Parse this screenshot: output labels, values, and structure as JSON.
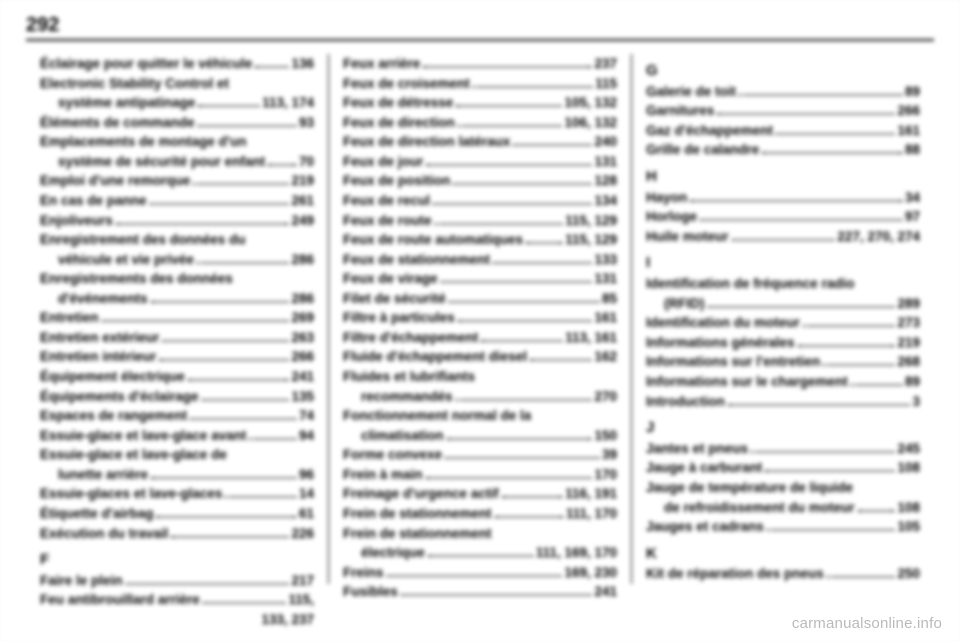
{
  "page_number": "292",
  "watermark": "carmanualsonline.info",
  "columns": [
    {
      "entries": [
        {
          "label": "Éclairage pour quitter le véhicule",
          "page": "136"
        },
        {
          "label": "Electronic Stability Control et",
          "page": ""
        },
        {
          "label": "système antipatinage",
          "page": "113, 174",
          "indent": true
        },
        {
          "label": "Éléments de commande",
          "page": "93"
        },
        {
          "label": "Emplacements de montage d'un",
          "page": ""
        },
        {
          "label": "système de sécurité pour enfant",
          "page": "70",
          "indent": true
        },
        {
          "label": "Emploi d'une remorque",
          "page": "219"
        },
        {
          "label": "En cas de panne",
          "page": "261"
        },
        {
          "label": "Enjoliveurs",
          "page": "249"
        },
        {
          "label": "Enregistrement des données du",
          "page": ""
        },
        {
          "label": "véhicule et vie privée",
          "page": "286",
          "indent": true
        },
        {
          "label": "Enregistrements des données",
          "page": ""
        },
        {
          "label": "d'événements",
          "page": "286",
          "indent": true
        },
        {
          "label": "Entretien",
          "page": "269"
        },
        {
          "label": "Entretien extérieur",
          "page": "263"
        },
        {
          "label": "Entretien intérieur",
          "page": "266"
        },
        {
          "label": "Équipement électrique",
          "page": "241"
        },
        {
          "label": "Équipements d'éclairage",
          "page": "135"
        },
        {
          "label": "Espaces de rangement",
          "page": "74"
        },
        {
          "label": "Essuie-glace et lave-glace avant",
          "page": "94"
        },
        {
          "label": "Essuie-glace et lave-glace de",
          "page": ""
        },
        {
          "label": "lunette arrière",
          "page": "96",
          "indent": true
        },
        {
          "label": "Essuie-glaces et lave-glaces",
          "page": "14"
        },
        {
          "label": "Étiquette d'airbag",
          "page": "61"
        },
        {
          "label": "Exécution du travail",
          "page": "226"
        },
        {
          "letter": "F"
        },
        {
          "label": "Faire le plein",
          "page": "217"
        },
        {
          "label": "Feu antibrouillard arrière",
          "page": "115,"
        },
        {
          "label": "",
          "page": "133, 237",
          "indent": true,
          "nodots": true
        }
      ]
    },
    {
      "entries": [
        {
          "label": "Feux arrière",
          "page": "237"
        },
        {
          "label": "Feux de croisement",
          "page": "115"
        },
        {
          "label": "Feux de détresse",
          "page": "105, 132"
        },
        {
          "label": "Feux de direction",
          "page": "106, 132"
        },
        {
          "label": "Feux de direction latéraux",
          "page": "240"
        },
        {
          "label": "Feux de jour",
          "page": "131"
        },
        {
          "label": "Feux de position",
          "page": "128"
        },
        {
          "label": "Feux de recul",
          "page": "134"
        },
        {
          "label": "Feux de route",
          "page": "115, 129"
        },
        {
          "label": "Feux de route automatiques",
          "page": "115, 129"
        },
        {
          "label": "Feux de stationnement",
          "page": "133"
        },
        {
          "label": "Feux de virage",
          "page": "131"
        },
        {
          "label": "Filet de sécurité",
          "page": "85"
        },
        {
          "label": "Filtre à particules",
          "page": "161"
        },
        {
          "label": "Filtre d'échappement",
          "page": "113, 161"
        },
        {
          "label": "Fluide d'échappement diesel",
          "page": "162"
        },
        {
          "label": "Fluides et lubrifiants",
          "page": ""
        },
        {
          "label": "recommandés",
          "page": "270",
          "indent": true
        },
        {
          "label": "Fonctionnement normal de la",
          "page": ""
        },
        {
          "label": "climatisation",
          "page": "150",
          "indent": true
        },
        {
          "label": "Forme convexe",
          "page": "39"
        },
        {
          "label": "Frein à main",
          "page": "170"
        },
        {
          "label": "Freinage d'urgence actif",
          "page": "116, 191"
        },
        {
          "label": "Frein de stationnement",
          "page": "111, 170"
        },
        {
          "label": "Frein de stationnement",
          "page": ""
        },
        {
          "label": "électrique",
          "page": "111, 169, 170",
          "indent": true
        },
        {
          "label": "Freins",
          "page": "169, 230"
        },
        {
          "label": "Fusibles",
          "page": "241"
        }
      ]
    },
    {
      "entries": [
        {
          "letter": "G"
        },
        {
          "label": "Galerie de toit",
          "page": "89"
        },
        {
          "label": "Garnitures",
          "page": "266"
        },
        {
          "label": "Gaz d'échappement",
          "page": "161"
        },
        {
          "label": "Grille de calandre",
          "page": "88"
        },
        {
          "letter": "H"
        },
        {
          "label": "Hayon",
          "page": "34"
        },
        {
          "label": "Horloge",
          "page": "97"
        },
        {
          "label": "Huile moteur",
          "page": "227, 270, 274"
        },
        {
          "letter": "I"
        },
        {
          "label": "Identification de fréquence radio",
          "page": ""
        },
        {
          "label": "(RFID)",
          "page": "289",
          "indent": true
        },
        {
          "label": "Identification du moteur",
          "page": "273"
        },
        {
          "label": "Informations générales",
          "page": "219"
        },
        {
          "label": "Informations sur l'entretien",
          "page": "268"
        },
        {
          "label": "Informations sur le chargement",
          "page": "89"
        },
        {
          "label": "Introduction",
          "page": "3"
        },
        {
          "letter": "J"
        },
        {
          "label": "Jantes et pneus",
          "page": "245"
        },
        {
          "label": "Jauge à carburant",
          "page": "108"
        },
        {
          "label": "Jauge de température de liquide",
          "page": ""
        },
        {
          "label": "de refroidissement du moteur",
          "page": "108",
          "indent": true
        },
        {
          "label": "Jauges et cadrans",
          "page": "105"
        },
        {
          "letter": "K"
        },
        {
          "label": "Kit de réparation des pneus",
          "page": "250"
        }
      ]
    }
  ]
}
